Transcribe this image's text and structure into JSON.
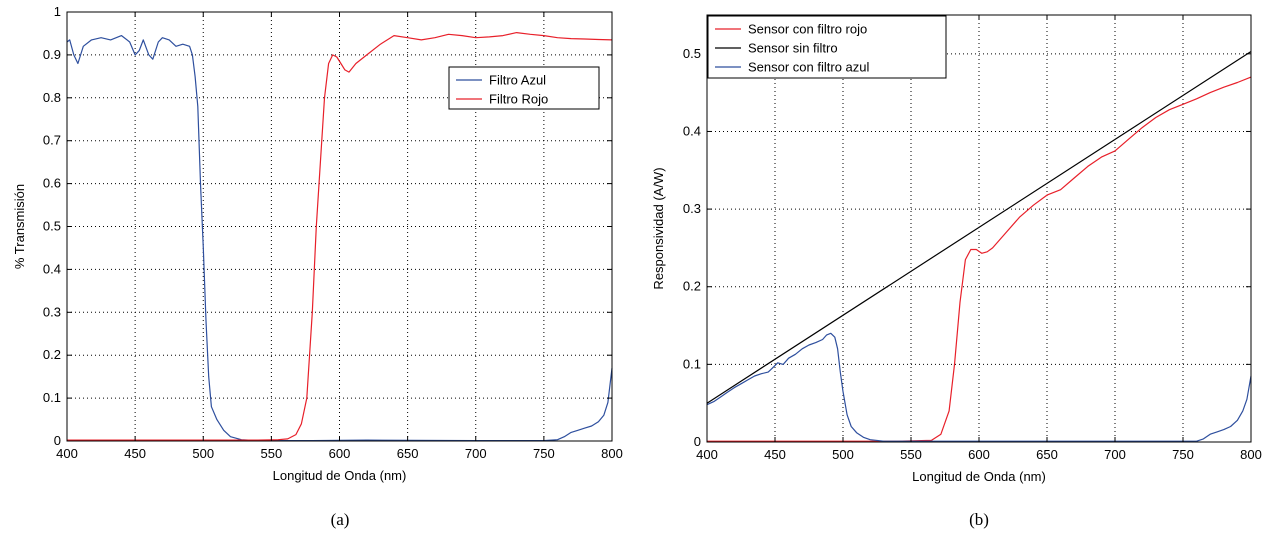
{
  "chart_data": [
    {
      "type": "line",
      "caption": "(a)",
      "xlabel": "Longitud de Onda (nm)",
      "ylabel": "% Transmisión",
      "xlim": [
        400,
        800
      ],
      "ylim": [
        0,
        1
      ],
      "xticks": [
        400,
        450,
        500,
        550,
        600,
        650,
        700,
        750,
        800
      ],
      "yticks": [
        0,
        0.1,
        0.2,
        0.3,
        0.4,
        0.5,
        0.6,
        0.7,
        0.8,
        0.9,
        1
      ],
      "ytick_labels": [
        "0",
        "0.1",
        "0.2",
        "0.3",
        "0.4",
        "0.5",
        "0.6",
        "0.7",
        "0.8",
        "0.9",
        "1"
      ],
      "grid": true,
      "legend_position": "upper-right",
      "series": [
        {
          "name": "Filtro Azul",
          "color": "#2e4f9e",
          "points": [
            [
              400,
              0.93
            ],
            [
              402,
              0.935
            ],
            [
              405,
              0.9
            ],
            [
              408,
              0.88
            ],
            [
              412,
              0.92
            ],
            [
              418,
              0.935
            ],
            [
              425,
              0.94
            ],
            [
              432,
              0.935
            ],
            [
              440,
              0.945
            ],
            [
              446,
              0.93
            ],
            [
              450,
              0.9
            ],
            [
              453,
              0.91
            ],
            [
              456,
              0.935
            ],
            [
              460,
              0.9
            ],
            [
              463,
              0.89
            ],
            [
              467,
              0.93
            ],
            [
              470,
              0.94
            ],
            [
              475,
              0.935
            ],
            [
              480,
              0.92
            ],
            [
              485,
              0.925
            ],
            [
              490,
              0.92
            ],
            [
              492,
              0.9
            ],
            [
              494,
              0.85
            ],
            [
              496,
              0.78
            ],
            [
              498,
              0.6
            ],
            [
              500,
              0.45
            ],
            [
              502,
              0.28
            ],
            [
              504,
              0.15
            ],
            [
              506,
              0.08
            ],
            [
              510,
              0.05
            ],
            [
              515,
              0.025
            ],
            [
              520,
              0.01
            ],
            [
              528,
              0.003
            ],
            [
              540,
              0.001
            ],
            [
              580,
              0.001
            ],
            [
              620,
              0.002
            ],
            [
              700,
              0.001
            ],
            [
              750,
              0.001
            ],
            [
              760,
              0.003
            ],
            [
              765,
              0.01
            ],
            [
              770,
              0.02
            ],
            [
              775,
              0.025
            ],
            [
              780,
              0.03
            ],
            [
              785,
              0.035
            ],
            [
              790,
              0.045
            ],
            [
              794,
              0.06
            ],
            [
              797,
              0.09
            ],
            [
              800,
              0.17
            ]
          ]
        },
        {
          "name": "Filtro Rojo",
          "color": "#e8202a",
          "points": [
            [
              400,
              0.002
            ],
            [
              500,
              0.002
            ],
            [
              540,
              0.002
            ],
            [
              555,
              0.003
            ],
            [
              562,
              0.005
            ],
            [
              568,
              0.015
            ],
            [
              572,
              0.04
            ],
            [
              576,
              0.1
            ],
            [
              580,
              0.3
            ],
            [
              583,
              0.5
            ],
            [
              586,
              0.65
            ],
            [
              589,
              0.8
            ],
            [
              592,
              0.88
            ],
            [
              595,
              0.9
            ],
            [
              598,
              0.895
            ],
            [
              601,
              0.88
            ],
            [
              604,
              0.865
            ],
            [
              607,
              0.86
            ],
            [
              612,
              0.88
            ],
            [
              620,
              0.9
            ],
            [
              630,
              0.925
            ],
            [
              640,
              0.945
            ],
            [
              650,
              0.94
            ],
            [
              660,
              0.935
            ],
            [
              670,
              0.94
            ],
            [
              680,
              0.948
            ],
            [
              690,
              0.945
            ],
            [
              700,
              0.94
            ],
            [
              710,
              0.942
            ],
            [
              720,
              0.945
            ],
            [
              730,
              0.952
            ],
            [
              740,
              0.948
            ],
            [
              750,
              0.945
            ],
            [
              760,
              0.94
            ],
            [
              770,
              0.938
            ],
            [
              780,
              0.937
            ],
            [
              790,
              0.936
            ],
            [
              800,
              0.935
            ]
          ]
        }
      ]
    },
    {
      "type": "line",
      "caption": "(b)",
      "xlabel": "Longitud de Onda (nm)",
      "ylabel": "Responsividad (A/W)",
      "xlim": [
        400,
        800
      ],
      "ylim": [
        0,
        0.55
      ],
      "xticks": [
        400,
        450,
        500,
        550,
        600,
        650,
        700,
        750,
        800
      ],
      "yticks": [
        0,
        0.1,
        0.2,
        0.3,
        0.4,
        0.5
      ],
      "ytick_labels": [
        "0",
        "0.1",
        "0.2",
        "0.3",
        "0.4",
        "0.5"
      ],
      "grid": true,
      "legend_position": "upper-left",
      "series": [
        {
          "name": "Sensor con filtro rojo",
          "color": "#e8202a",
          "points": [
            [
              400,
              0.001
            ],
            [
              540,
              0.001
            ],
            [
              565,
              0.002
            ],
            [
              572,
              0.01
            ],
            [
              578,
              0.04
            ],
            [
              582,
              0.1
            ],
            [
              586,
              0.18
            ],
            [
              590,
              0.235
            ],
            [
              594,
              0.248
            ],
            [
              598,
              0.248
            ],
            [
              602,
              0.243
            ],
            [
              606,
              0.245
            ],
            [
              610,
              0.25
            ],
            [
              620,
              0.27
            ],
            [
              630,
              0.29
            ],
            [
              640,
              0.305
            ],
            [
              650,
              0.318
            ],
            [
              660,
              0.325
            ],
            [
              670,
              0.34
            ],
            [
              680,
              0.355
            ],
            [
              690,
              0.367
            ],
            [
              700,
              0.375
            ],
            [
              710,
              0.39
            ],
            [
              720,
              0.405
            ],
            [
              730,
              0.418
            ],
            [
              740,
              0.428
            ],
            [
              750,
              0.435
            ],
            [
              760,
              0.442
            ],
            [
              770,
              0.45
            ],
            [
              780,
              0.457
            ],
            [
              790,
              0.463
            ],
            [
              800,
              0.47
            ]
          ]
        },
        {
          "name": "Sensor sin filtro",
          "color": "#000000",
          "points": [
            [
              400,
              0.05
            ],
            [
              800,
              0.503
            ]
          ]
        },
        {
          "name": "Sensor con filtro azul",
          "color": "#2e4f9e",
          "points": [
            [
              400,
              0.048
            ],
            [
              405,
              0.052
            ],
            [
              410,
              0.058
            ],
            [
              415,
              0.064
            ],
            [
              420,
              0.07
            ],
            [
              425,
              0.075
            ],
            [
              430,
              0.08
            ],
            [
              435,
              0.085
            ],
            [
              440,
              0.088
            ],
            [
              445,
              0.09
            ],
            [
              448,
              0.095
            ],
            [
              452,
              0.102
            ],
            [
              456,
              0.1
            ],
            [
              460,
              0.108
            ],
            [
              465,
              0.113
            ],
            [
              470,
              0.12
            ],
            [
              475,
              0.125
            ],
            [
              480,
              0.128
            ],
            [
              485,
              0.132
            ],
            [
              488,
              0.138
            ],
            [
              491,
              0.14
            ],
            [
              494,
              0.135
            ],
            [
              496,
              0.12
            ],
            [
              498,
              0.09
            ],
            [
              500,
              0.065
            ],
            [
              503,
              0.035
            ],
            [
              506,
              0.02
            ],
            [
              510,
              0.012
            ],
            [
              515,
              0.006
            ],
            [
              520,
              0.003
            ],
            [
              530,
              0.001
            ],
            [
              600,
              0.001
            ],
            [
              700,
              0.001
            ],
            [
              760,
              0.001
            ],
            [
              765,
              0.004
            ],
            [
              770,
              0.01
            ],
            [
              775,
              0.013
            ],
            [
              780,
              0.016
            ],
            [
              785,
              0.02
            ],
            [
              790,
              0.028
            ],
            [
              794,
              0.04
            ],
            [
              797,
              0.055
            ],
            [
              800,
              0.085
            ]
          ]
        }
      ]
    }
  ]
}
